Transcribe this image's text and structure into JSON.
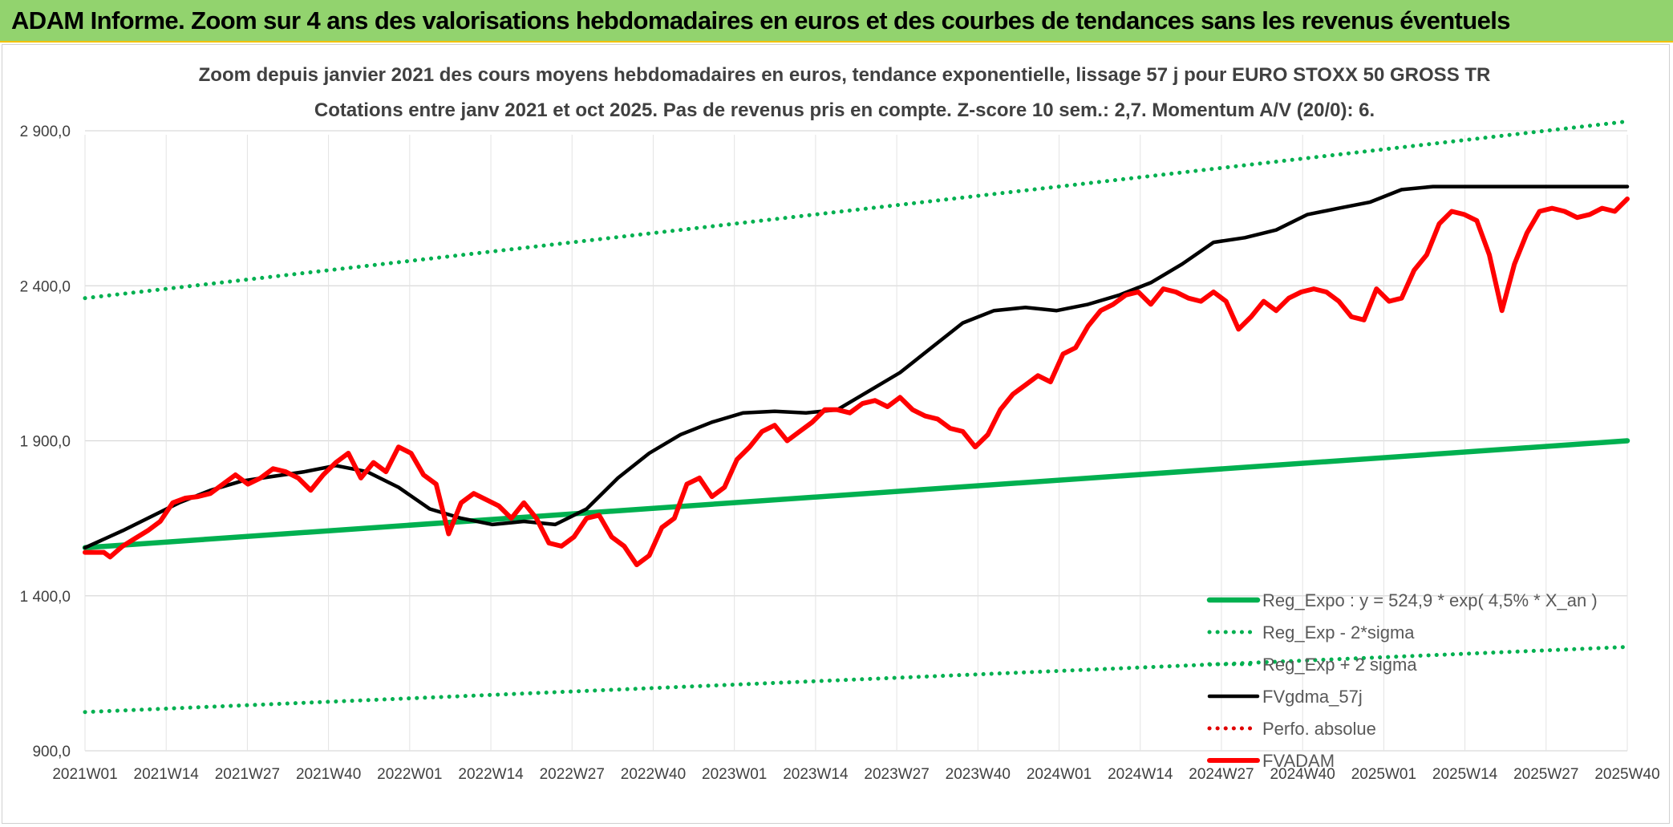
{
  "banner": {
    "title": "ADAM Informe. Zoom sur 4 ans des valorisations hebdomadaires en euros et des courbes de tendances sans les revenus éventuels"
  },
  "chart_data": {
    "type": "line",
    "title": "Zoom depuis janvier 2021 des cours moyens hebdomadaires en euros, tendance exponentielle, lissage 57 j pour EURO STOXX 50 GROSS TR",
    "subtitle": "Cotations entre janv 2021 et oct 2025. Pas de revenus pris en compte. Z-score 10 sem.: 2,7. Momentum A/V (20/0): 6.",
    "xlabel": "",
    "ylabel": "",
    "ylim": [
      900,
      2900
    ],
    "yticks": [
      "2 900,0",
      "2 400,0",
      "1 900,0",
      "1 400,0",
      "900,0"
    ],
    "ytick_values": [
      2900,
      2400,
      1900,
      1400,
      900
    ],
    "xticks": [
      "2021W01",
      "2021W14",
      "2021W27",
      "2021W40",
      "2022W01",
      "2022W14",
      "2022W27",
      "2022W40",
      "2023W01",
      "2023W14",
      "2023W27",
      "2023W40",
      "2024W01",
      "2024W14",
      "2024W27",
      "2024W40",
      "2025W01",
      "2025W14",
      "2025W27",
      "2025W40"
    ],
    "grid": true,
    "legend_position": "bottom-right",
    "series": [
      {
        "name": "Reg_Expo : y = 524,9 * exp( 4,5% *  X_an )",
        "color": "#00b050",
        "style": "solid-thick",
        "x": [
          0,
          246
        ],
        "values": [
          1555,
          1900
        ]
      },
      {
        "name": "Reg_Exp - 2*sigma",
        "color": "#00b050",
        "style": "dotted",
        "x": [
          0,
          246
        ],
        "values": [
          1025,
          1235
        ]
      },
      {
        "name": "Reg_Exp + 2 sigma",
        "color": "#00b050",
        "style": "dotted",
        "x": [
          0,
          246
        ],
        "values": [
          2360,
          2930
        ]
      },
      {
        "name": "FVgdma_57j",
        "color": "#000000",
        "style": "solid",
        "x": [
          0,
          6,
          10,
          15,
          20,
          25,
          30,
          35,
          40,
          45,
          50,
          55,
          60,
          65,
          70,
          75,
          80,
          85,
          90,
          95,
          100,
          105,
          110,
          115,
          120,
          125,
          130,
          135,
          140,
          145,
          150,
          155,
          160,
          165,
          170,
          175,
          180,
          185,
          190,
          195,
          200,
          205,
          210,
          215,
          220,
          225,
          230,
          235,
          240,
          246
        ],
        "values": [
          1555,
          1610,
          1650,
          1700,
          1740,
          1770,
          1785,
          1800,
          1820,
          1800,
          1750,
          1680,
          1650,
          1630,
          1640,
          1630,
          1680,
          1780,
          1860,
          1920,
          1960,
          1990,
          1995,
          1990,
          2000,
          2060,
          2120,
          2200,
          2280,
          2320,
          2330,
          2320,
          2340,
          2370,
          2410,
          2470,
          2540,
          2555,
          2580,
          2630,
          2650,
          2670,
          2710,
          2720,
          2720,
          2720,
          2720,
          2720,
          2720,
          2720
        ]
      },
      {
        "name": "Perfo. absolue",
        "color": "#e00000",
        "style": "dotted",
        "x": [],
        "values": []
      },
      {
        "name": "FVADAM",
        "color": "#ff0000",
        "style": "solid-thick",
        "x": [
          0,
          3,
          4,
          6,
          8,
          10,
          12,
          14,
          16,
          18,
          20,
          22,
          24,
          26,
          28,
          30,
          32,
          34,
          36,
          38,
          40,
          42,
          44,
          46,
          48,
          50,
          52,
          54,
          56,
          58,
          60,
          62,
          64,
          66,
          68,
          70,
          72,
          74,
          76,
          78,
          80,
          82,
          84,
          86,
          88,
          90,
          92,
          94,
          96,
          98,
          100,
          102,
          104,
          106,
          108,
          110,
          112,
          114,
          116,
          118,
          120,
          122,
          124,
          126,
          128,
          130,
          132,
          134,
          136,
          138,
          140,
          142,
          144,
          146,
          148,
          150,
          152,
          154,
          156,
          158,
          160,
          162,
          164,
          166,
          168,
          170,
          172,
          174,
          176,
          178,
          180,
          182,
          184,
          186,
          188,
          190,
          192,
          194,
          196,
          198,
          200,
          202,
          204,
          206,
          208,
          210,
          212,
          214,
          216,
          218,
          220,
          222,
          224,
          226,
          228,
          230,
          232,
          234,
          236,
          238,
          240,
          242,
          244,
          246
        ],
        "values": [
          1540,
          1540,
          1525,
          1560,
          1585,
          1610,
          1640,
          1700,
          1715,
          1720,
          1730,
          1760,
          1790,
          1760,
          1780,
          1810,
          1800,
          1780,
          1740,
          1790,
          1830,
          1860,
          1780,
          1830,
          1800,
          1880,
          1860,
          1790,
          1760,
          1600,
          1700,
          1730,
          1710,
          1690,
          1650,
          1700,
          1650,
          1570,
          1560,
          1590,
          1650,
          1660,
          1590,
          1560,
          1500,
          1530,
          1620,
          1650,
          1760,
          1780,
          1720,
          1750,
          1840,
          1880,
          1930,
          1950,
          1900,
          1930,
          1960,
          2000,
          2000,
          1990,
          2020,
          2030,
          2010,
          2040,
          2000,
          1980,
          1970,
          1940,
          1930,
          1880,
          1920,
          2000,
          2050,
          2080,
          2110,
          2090,
          2180,
          2200,
          2270,
          2320,
          2340,
          2370,
          2380,
          2340,
          2390,
          2380,
          2360,
          2350,
          2380,
          2350,
          2260,
          2300,
          2350,
          2320,
          2360,
          2380,
          2390,
          2380,
          2350,
          2300,
          2290,
          2390,
          2350,
          2360,
          2450,
          2500,
          2600,
          2640,
          2630,
          2610,
          2500,
          2320,
          2470,
          2570,
          2640,
          2650,
          2640,
          2620,
          2630,
          2650,
          2640,
          2680
        ]
      }
    ]
  }
}
